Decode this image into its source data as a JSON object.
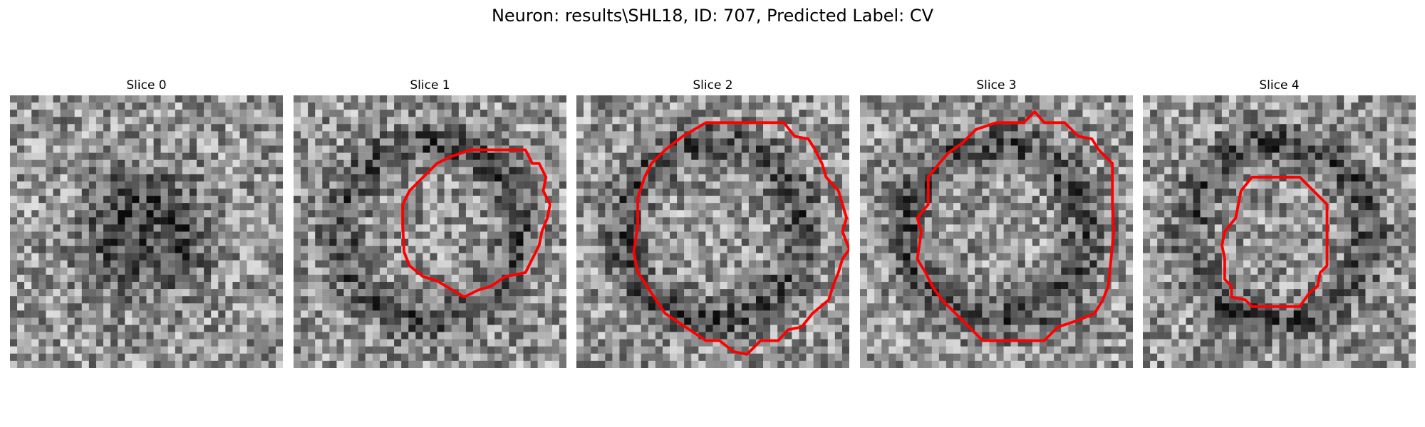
{
  "title": "Neuron: results\\SHL18, ID: 707, Predicted Label: CV",
  "panels": [
    {
      "label": "Slice 0",
      "seed": 11,
      "has_contour": false,
      "contour": []
    },
    {
      "label": "Slice 1",
      "seed": 23,
      "has_contour": true,
      "contour": [
        [
          13,
          4
        ],
        [
          17,
          4
        ],
        [
          17.5,
          5
        ],
        [
          18,
          5
        ],
        [
          18.5,
          6
        ],
        [
          18.3,
          7
        ],
        [
          18.8,
          8
        ],
        [
          18.6,
          9
        ],
        [
          18.2,
          10
        ],
        [
          18.0,
          11
        ],
        [
          17.5,
          12
        ],
        [
          17,
          13
        ],
        [
          15.5,
          13.3
        ],
        [
          14.5,
          14
        ],
        [
          13.5,
          14.3
        ],
        [
          12.5,
          14.8
        ],
        [
          11.5,
          14.2
        ],
        [
          10.5,
          13.6
        ],
        [
          9.5,
          13.3
        ],
        [
          8.5,
          12.5
        ],
        [
          8.1,
          11.5
        ],
        [
          8.0,
          9.5
        ],
        [
          8.0,
          8
        ],
        [
          8.5,
          7
        ],
        [
          9.5,
          6
        ],
        [
          10.5,
          5
        ],
        [
          11.5,
          4.5
        ]
      ]
    },
    {
      "label": "Slice 2",
      "seed": 37,
      "has_contour": true,
      "contour": [
        [
          11.5,
          2
        ],
        [
          15.2,
          2
        ],
        [
          16,
          3
        ],
        [
          17,
          3.2
        ],
        [
          17.5,
          4
        ],
        [
          18,
          5
        ],
        [
          18.3,
          6
        ],
        [
          19.2,
          7
        ],
        [
          19.5,
          8
        ],
        [
          19.8,
          9
        ],
        [
          19.5,
          10
        ],
        [
          20,
          11.3
        ],
        [
          19.5,
          12
        ],
        [
          19.2,
          13
        ],
        [
          18.8,
          14
        ],
        [
          18.5,
          15
        ],
        [
          17.3,
          16
        ],
        [
          16.5,
          17
        ],
        [
          15.5,
          17.2
        ],
        [
          14.8,
          18
        ],
        [
          13.5,
          18
        ],
        [
          12.5,
          19
        ],
        [
          11.5,
          18.8
        ],
        [
          10.5,
          18
        ],
        [
          9.5,
          18
        ],
        [
          8,
          17
        ],
        [
          6.5,
          16
        ],
        [
          5.5,
          14.5
        ],
        [
          4.5,
          13
        ],
        [
          4.2,
          11.5
        ],
        [
          4.5,
          9.5
        ],
        [
          4.5,
          7.5
        ],
        [
          5,
          6
        ],
        [
          5.5,
          5
        ],
        [
          6.5,
          4
        ],
        [
          7.8,
          3
        ],
        [
          9.5,
          2
        ]
      ]
    },
    {
      "label": "Slice 3",
      "seed": 53,
      "has_contour": true,
      "contour": [
        [
          10,
          2
        ],
        [
          12,
          2
        ],
        [
          12.8,
          1.2
        ],
        [
          13.5,
          2
        ],
        [
          15,
          2
        ],
        [
          16,
          3
        ],
        [
          17,
          3.2
        ],
        [
          17.5,
          4
        ],
        [
          18.5,
          5
        ],
        [
          18.5,
          8
        ],
        [
          18.6,
          10
        ],
        [
          18.4,
          12
        ],
        [
          18.2,
          14
        ],
        [
          17.8,
          15
        ],
        [
          17.2,
          16
        ],
        [
          16,
          16.5
        ],
        [
          14.5,
          17
        ],
        [
          13.5,
          18
        ],
        [
          11,
          18
        ],
        [
          9,
          18
        ],
        [
          8,
          17
        ],
        [
          7,
          16
        ],
        [
          6,
          15
        ],
        [
          5.3,
          14
        ],
        [
          4.8,
          13
        ],
        [
          4.2,
          12
        ],
        [
          4.5,
          10
        ],
        [
          4.2,
          9
        ],
        [
          5,
          8
        ],
        [
          5,
          6
        ],
        [
          5.8,
          5
        ],
        [
          6.5,
          4.2
        ],
        [
          7.5,
          3.5
        ],
        [
          8.5,
          2.5
        ]
      ]
    },
    {
      "label": "Slice 4",
      "seed": 71,
      "has_contour": true,
      "contour": [
        [
          8,
          6
        ],
        [
          11.5,
          6
        ],
        [
          12.5,
          7
        ],
        [
          13.5,
          8
        ],
        [
          13.5,
          12.5
        ],
        [
          13,
          13
        ],
        [
          12.8,
          14
        ],
        [
          12.2,
          14.5
        ],
        [
          11.5,
          15.5
        ],
        [
          8,
          15.5
        ],
        [
          7.5,
          15
        ],
        [
          6.5,
          14.8
        ],
        [
          6.5,
          14
        ],
        [
          6,
          13.5
        ],
        [
          6,
          12
        ],
        [
          5.8,
          11
        ],
        [
          6,
          10
        ],
        [
          6.8,
          9
        ],
        [
          7,
          8
        ],
        [
          7.2,
          7
        ]
      ]
    }
  ]
}
